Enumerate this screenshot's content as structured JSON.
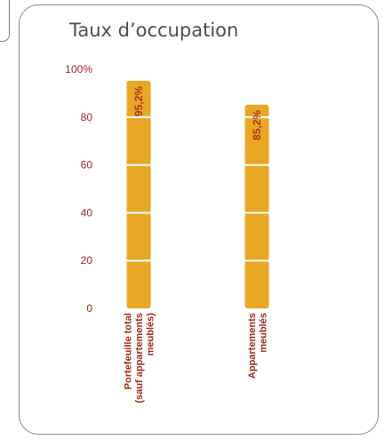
{
  "colors": {
    "bar": "#e8a826",
    "separator": "#ffffff",
    "text": "#9c2a1c",
    "value_label": "#b0351f",
    "title": "#4d4d4d",
    "frame": "#8a8a8a"
  },
  "chart_data": {
    "type": "bar",
    "orientation": "vertical",
    "title": "Taux d’occupation",
    "xlabel": "",
    "ylabel": "",
    "ylim": [
      0,
      100
    ],
    "grid": false,
    "legend": "none",
    "y_ticks": [
      0,
      20,
      40,
      60,
      80,
      100
    ],
    "y_tick_labels": [
      "0",
      "20",
      "40",
      "60",
      "80",
      "100%"
    ],
    "categories": [
      [
        "Portefeuille total",
        "(sauf appartements",
        "meublés)"
      ],
      [
        "Appartements",
        "meublés"
      ]
    ],
    "values": [
      95.2,
      85.2
    ],
    "value_labels": [
      "95,2%",
      "85,2%"
    ]
  }
}
